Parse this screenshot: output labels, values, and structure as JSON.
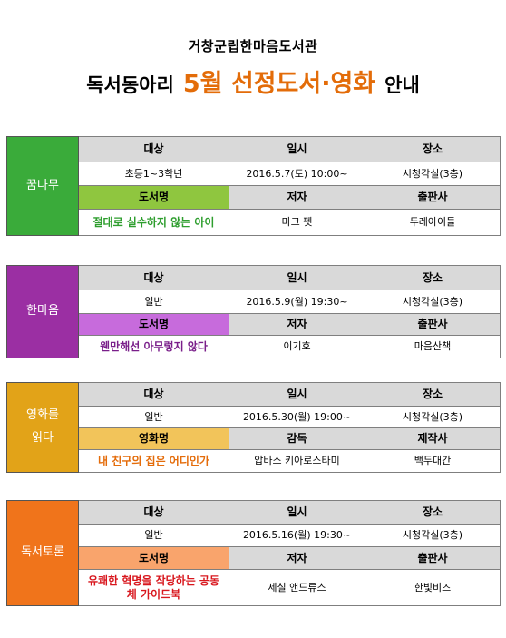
{
  "header": {
    "library": "거창군립한마음도서관",
    "prefix": "독서동아리",
    "highlight": "5월 선정도서·영화",
    "suffix": "안내"
  },
  "colors": {
    "accent_orange": "#e36c09",
    "header_gray": "#d9d9d9"
  },
  "columns": {
    "target": "대상",
    "date": "일시",
    "place": "장소"
  },
  "sections": [
    {
      "name": "꿈나무",
      "side_color": "#3aab3a",
      "highlight_color": "#8fc63f",
      "title_color": "#2e9e2e",
      "target": "초등1~3학년",
      "date": "2016.5.7(토) 10:00~",
      "place": "시청각실(3층)",
      "col1": "도서명",
      "col2": "저자",
      "col3": "출판사",
      "title": "절대로 실수하지 않는 아이",
      "creator": "마크 펫",
      "publisher": "두레아이들"
    },
    {
      "name": "한마음",
      "side_color": "#9b2fa3",
      "highlight_color": "#c76bdc",
      "title_color": "#7a1f8a",
      "target": "일반",
      "date": "2016.5.9(월) 19:30~",
      "place": "시청각실(3층)",
      "col1": "도서명",
      "col2": "저자",
      "col3": "출판사",
      "title": "웬만해선 아무렇지 않다",
      "creator": "이기호",
      "publisher": "마음산책"
    },
    {
      "name": "영화를 읽다",
      "side_color": "#e2a318",
      "highlight_color": "#f2c45a",
      "title_color": "#e46c0a",
      "target": "일반",
      "date": "2016.5.30(월) 19:00~",
      "place": "시청각실(3층)",
      "col1": "영화명",
      "col2": "감독",
      "col3": "제작사",
      "title": "내 친구의 집은 어디인가",
      "creator": "압바스 키아로스타미",
      "publisher": "백두대간"
    },
    {
      "name": "독서토론",
      "side_color": "#f0741b",
      "highlight_color": "#f9a46c",
      "title_color": "#d8161d",
      "target": "일반",
      "date": "2016.5.16(월) 19:30~",
      "place": "시청각실(3층)",
      "col1": "도서명",
      "col2": "저자",
      "col3": "출판사",
      "title": "유쾌한 혁명을 작당하는 공동체 가이드북",
      "creator": "세실 앤드류스",
      "publisher": "한빛비즈"
    }
  ]
}
